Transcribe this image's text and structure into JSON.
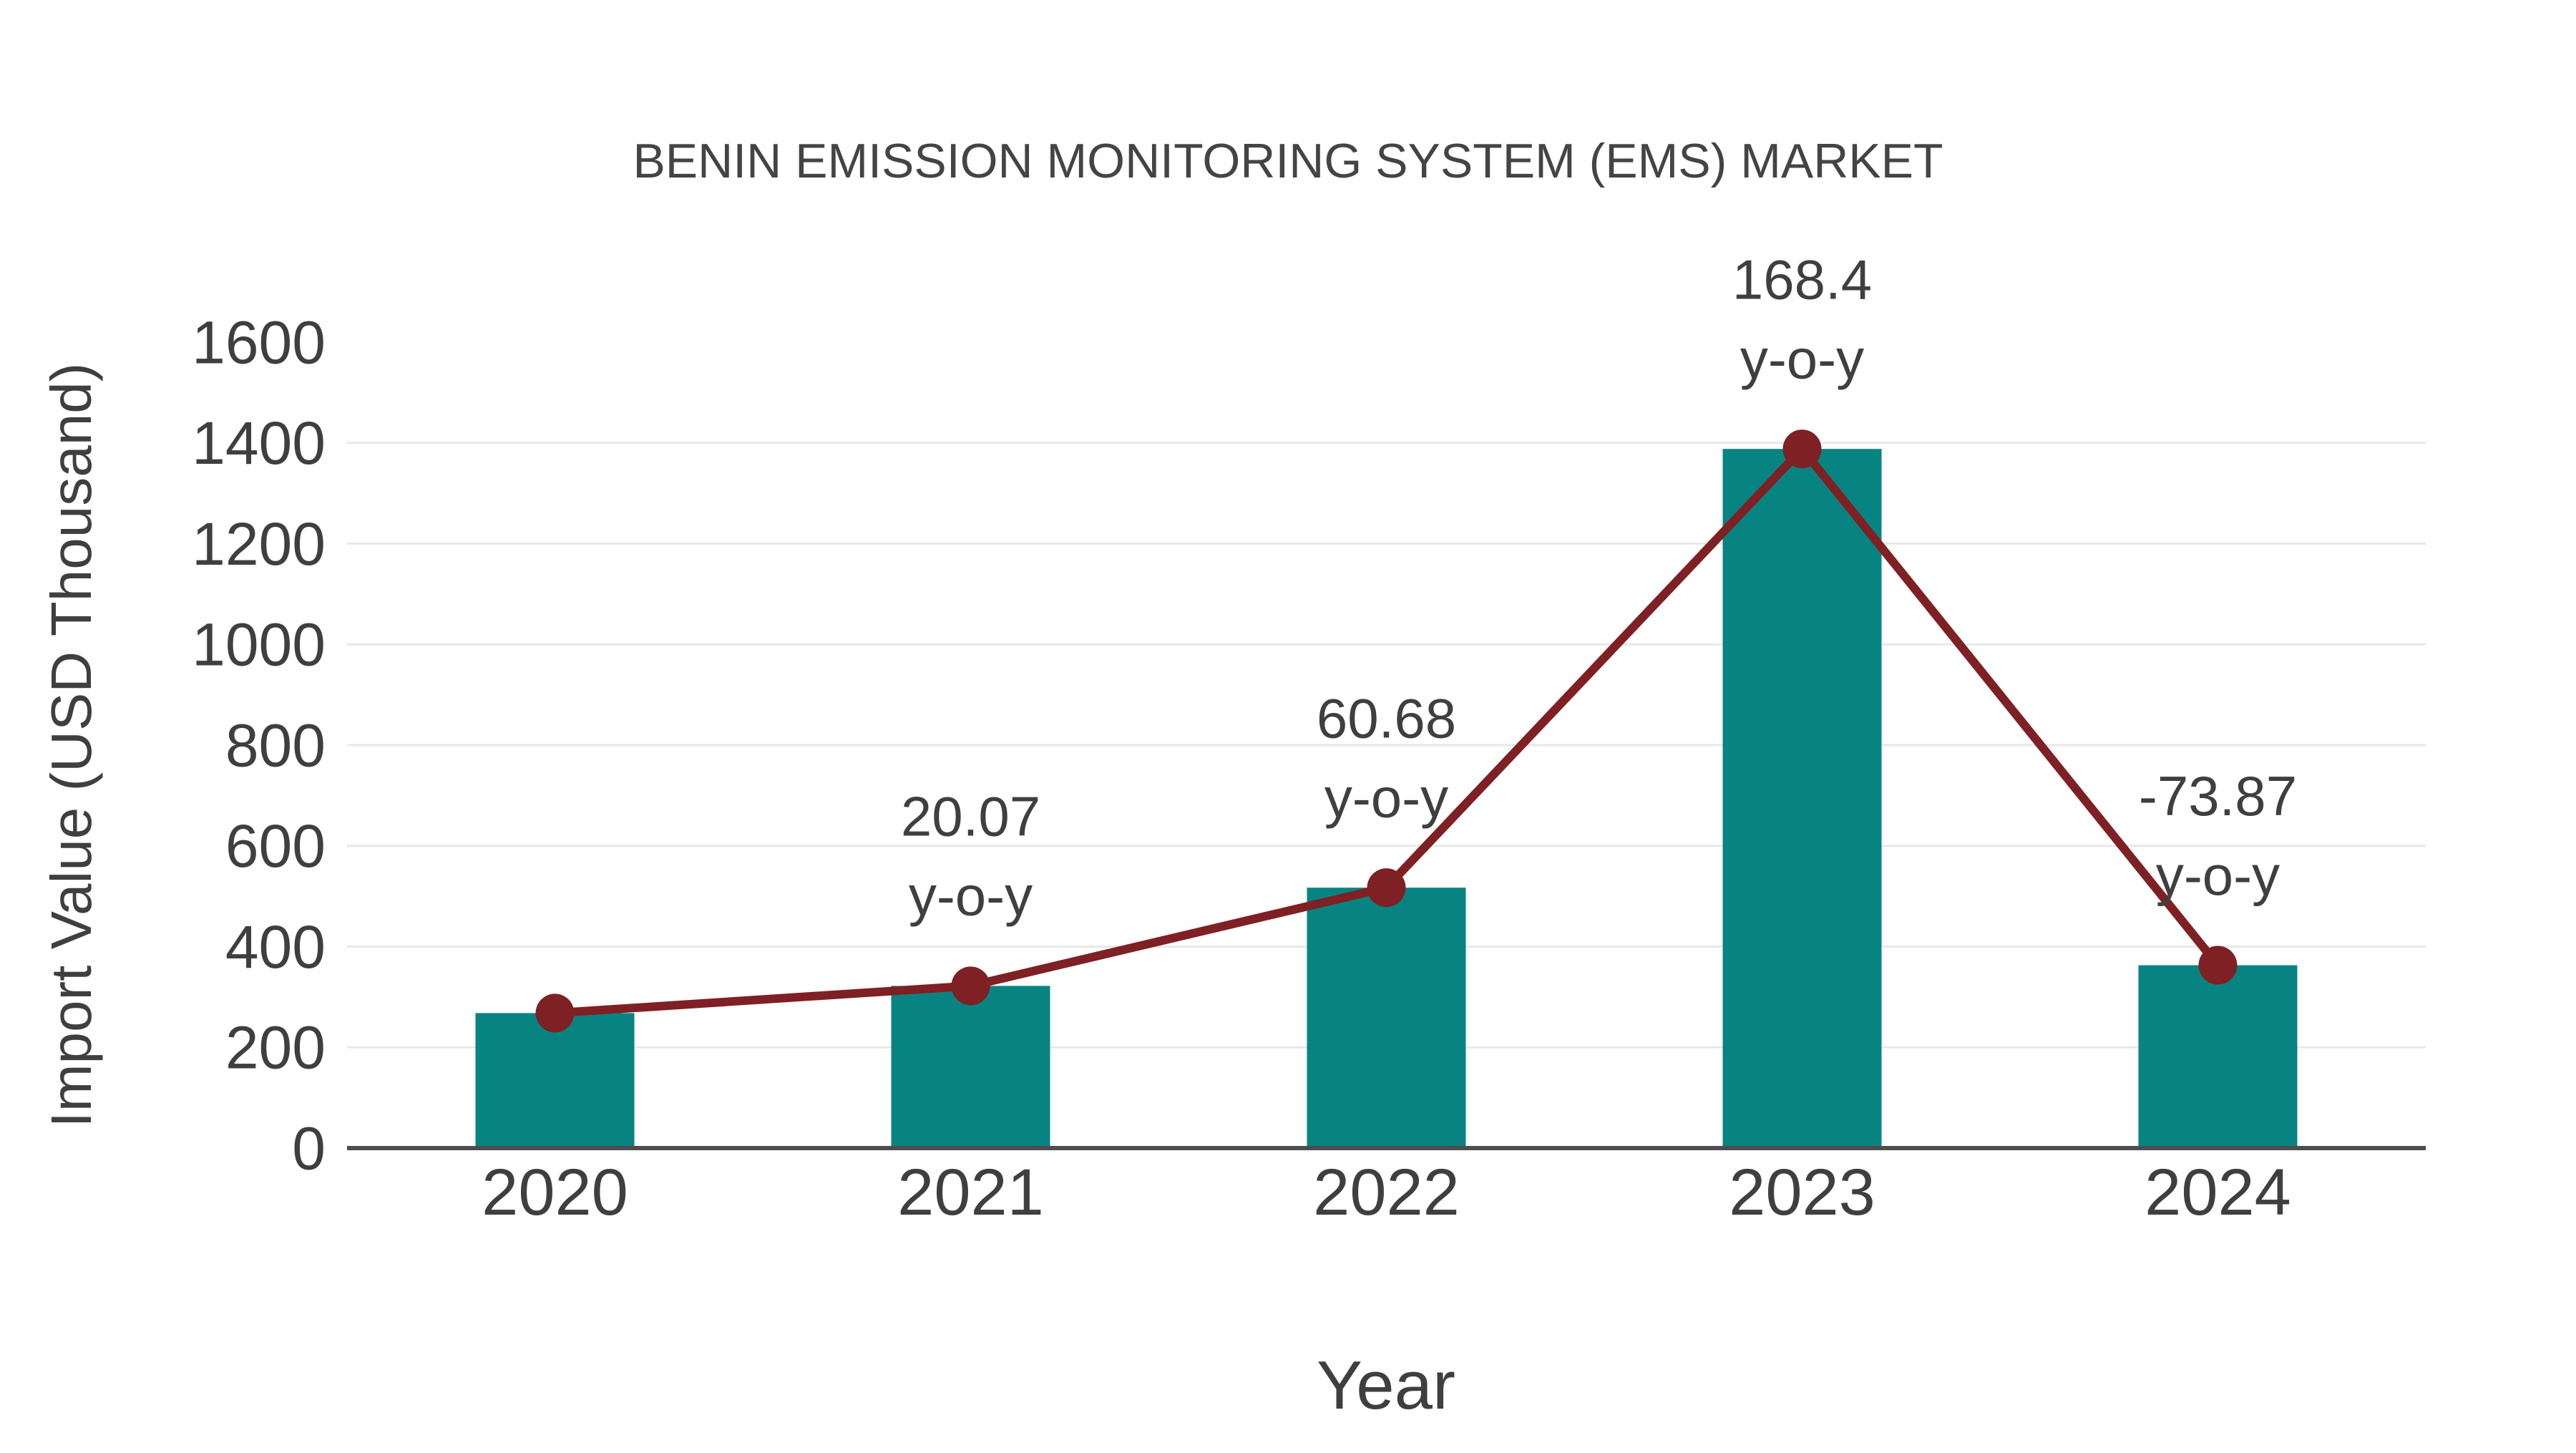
{
  "page": {
    "background": "#ffffff"
  },
  "chart_data": {
    "type": "bar",
    "title": "BENIN EMISSION MONITORING SYSTEM (EMS) MARKET",
    "xlabel": "Year",
    "ylabel": "Import Value (USD Thousand)",
    "categories": [
      "2020",
      "2021",
      "2022",
      "2023",
      "2024"
    ],
    "series": [
      {
        "name": "Import Value (USD Thousand)",
        "type": "bar",
        "values": [
          268,
          322,
          517,
          1388,
          363
        ]
      },
      {
        "name": "y-o-y trend line",
        "type": "line",
        "values": [
          268,
          322,
          517,
          1388,
          363
        ]
      }
    ],
    "yoy_labels": [
      "",
      "20.07",
      "60.68",
      "168.4",
      "-73.87"
    ],
    "yoy_suffix": "y-o-y",
    "ylim": [
      0,
      1600
    ],
    "yticks": [
      0,
      200,
      400,
      600,
      800,
      1000,
      1200,
      1400,
      1600
    ],
    "grid": true,
    "legend": false,
    "colors": {
      "bar": "#078482",
      "line": "#7e2024",
      "grid": "#e8e8e8",
      "axis": "#4d4d4d",
      "text": "#3f3f3f",
      "title": "#444444",
      "background": "#ffffff"
    }
  }
}
